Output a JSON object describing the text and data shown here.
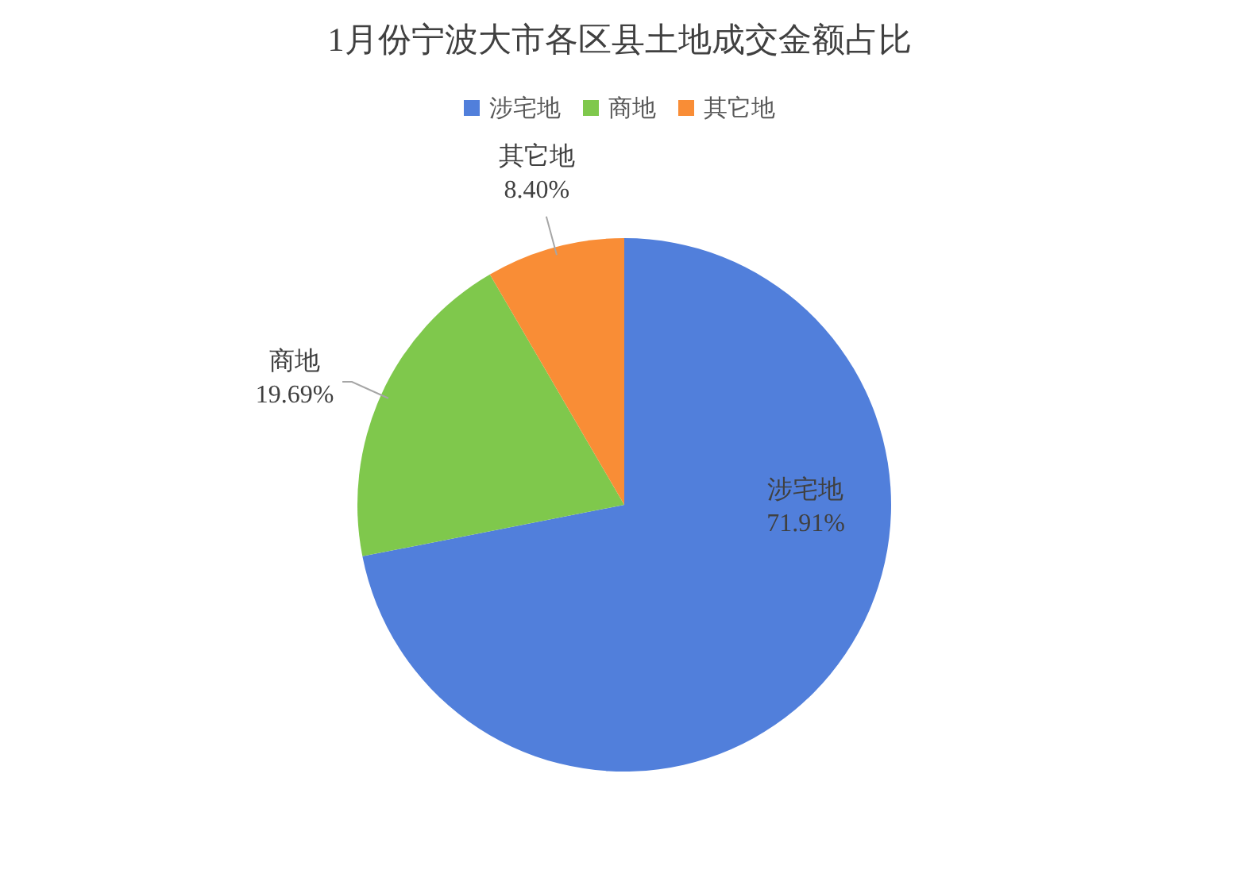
{
  "chart_data": {
    "type": "pie",
    "title": "1月份宁波大市各区县土地成交金额占比",
    "categories": [
      "涉宅地",
      "商地",
      "其它地"
    ],
    "values": [
      71.91,
      19.69,
      8.4
    ],
    "colors": [
      "#517fdb",
      "#7fc84c",
      "#f98d36"
    ],
    "value_labels": [
      "71.91%",
      "19.69%",
      "8.40%"
    ],
    "legend": "top"
  }
}
